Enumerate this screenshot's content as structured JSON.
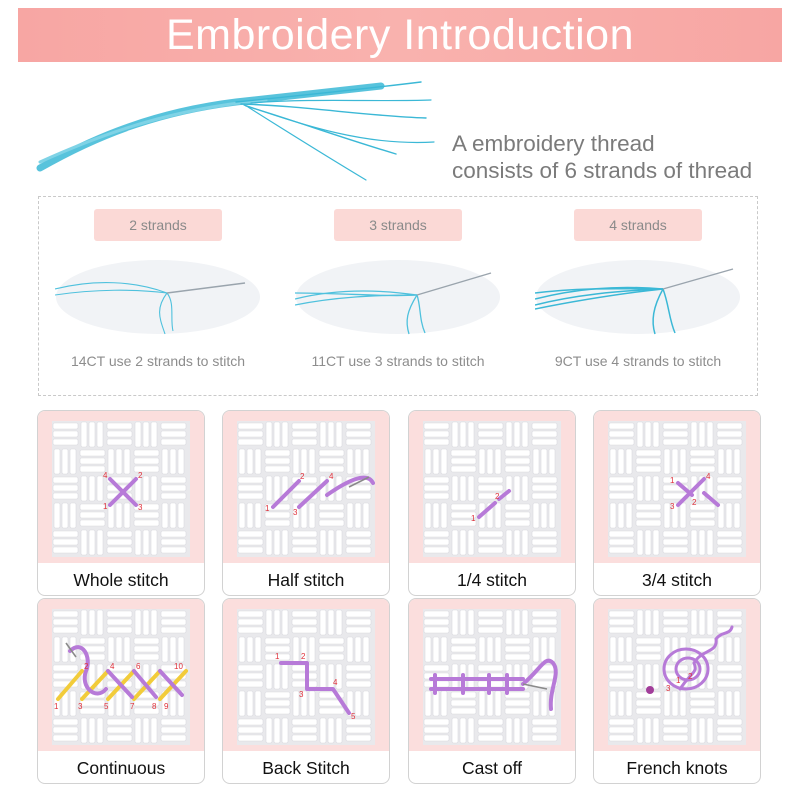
{
  "header": {
    "title": "Embroidery Introduction"
  },
  "intro": {
    "caption_line1": "A embroidery thread",
    "caption_line2": "consists of 6 strands of thread"
  },
  "strands": [
    {
      "label": "2 strands",
      "note": "14CT use 2 strands to stitch"
    },
    {
      "label": "3 strands",
      "note": "11CT use 3 strands to stitch"
    },
    {
      "label": "4 strands",
      "note": "9CT use 4 strands to stitch"
    }
  ],
  "stitches": [
    {
      "label": "Whole stitch",
      "numbers": [
        "1",
        "2",
        "3",
        "4"
      ]
    },
    {
      "label": "Half stitch",
      "numbers": [
        "1",
        "2",
        "3",
        "4"
      ]
    },
    {
      "label": "1/4 stitch",
      "numbers": [
        "1",
        "2"
      ]
    },
    {
      "label": "3/4 stitch",
      "numbers": [
        "1",
        "2",
        "3",
        "4"
      ]
    },
    {
      "label": "Continuous",
      "numbers": [
        "1",
        "2",
        "3",
        "4",
        "5",
        "6",
        "7",
        "8",
        "9",
        "10"
      ]
    },
    {
      "label": "Back Stitch",
      "numbers": [
        "1",
        "2",
        "3",
        "4",
        "5"
      ]
    },
    {
      "label": "Cast off",
      "numbers": []
    },
    {
      "label": "French knots",
      "numbers": [
        "1",
        "2",
        "3"
      ]
    }
  ],
  "colors": {
    "banner": "#f7a6a3",
    "pill": "#fbd9d6",
    "card_background": "#fbdedd",
    "thread_blue": "#3bb8d6",
    "stitch_purple": "#b77ad8",
    "stitch_yellow": "#f2cc3a"
  }
}
